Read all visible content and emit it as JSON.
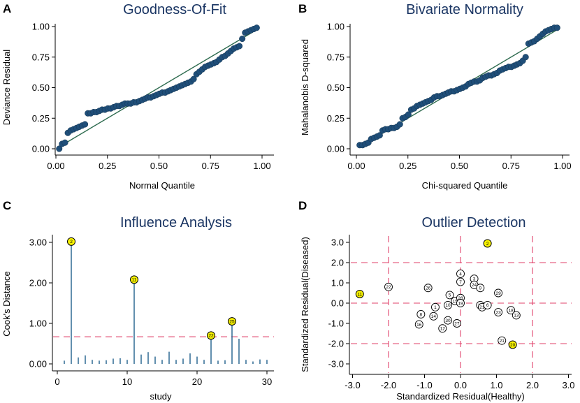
{
  "figure_labels": [
    "A",
    "B",
    "C",
    "D"
  ],
  "colors": {
    "title": "#1a3563",
    "dots": "#1f4e79",
    "fit_line": "#2e6b4f",
    "reference": "#e0406a",
    "highlight": "#f7f202",
    "stems": "#1f5f8b"
  },
  "chart_data": [
    {
      "panel": "A",
      "type": "scatter",
      "title": "Goodness-Of-Fit",
      "xlabel": "Normal Quantile",
      "ylabel": "Deviance Residual",
      "xlim": [
        0,
        1
      ],
      "ylim": [
        0,
        1
      ],
      "xticks": [
        "0.00",
        "0.25",
        "0.50",
        "0.75",
        "1.00"
      ],
      "yticks": [
        "0.00",
        "0.25",
        "0.50",
        "0.75",
        "1.00"
      ],
      "fit_line": [
        [
          0.02,
          0.02
        ],
        [
          0.98,
          0.98
        ]
      ],
      "x": [
        0.016,
        0.03,
        0.044,
        0.058,
        0.072,
        0.086,
        0.1,
        0.113,
        0.127,
        0.141,
        0.155,
        0.169,
        0.183,
        0.197,
        0.211,
        0.224,
        0.238,
        0.252,
        0.266,
        0.28,
        0.294,
        0.308,
        0.322,
        0.335,
        0.349,
        0.363,
        0.377,
        0.391,
        0.405,
        0.419,
        0.433,
        0.446,
        0.46,
        0.474,
        0.488,
        0.502,
        0.516,
        0.53,
        0.544,
        0.557,
        0.571,
        0.585,
        0.599,
        0.613,
        0.627,
        0.641,
        0.655,
        0.668,
        0.682,
        0.696,
        0.71,
        0.724,
        0.738,
        0.752,
        0.766,
        0.779,
        0.793,
        0.807,
        0.821,
        0.835,
        0.849,
        0.863,
        0.877,
        0.89,
        0.904,
        0.918,
        0.932,
        0.946,
        0.96,
        0.974
      ],
      "y": [
        0.0,
        0.04,
        0.05,
        0.13,
        0.15,
        0.16,
        0.17,
        0.18,
        0.19,
        0.2,
        0.29,
        0.29,
        0.3,
        0.3,
        0.31,
        0.32,
        0.32,
        0.33,
        0.33,
        0.34,
        0.35,
        0.35,
        0.36,
        0.37,
        0.37,
        0.37,
        0.38,
        0.38,
        0.39,
        0.4,
        0.41,
        0.42,
        0.42,
        0.43,
        0.44,
        0.45,
        0.46,
        0.46,
        0.47,
        0.48,
        0.49,
        0.5,
        0.51,
        0.52,
        0.53,
        0.54,
        0.55,
        0.57,
        0.61,
        0.63,
        0.65,
        0.67,
        0.68,
        0.69,
        0.7,
        0.71,
        0.73,
        0.75,
        0.76,
        0.78,
        0.8,
        0.82,
        0.83,
        0.84,
        0.9,
        0.95,
        0.96,
        0.97,
        0.98,
        0.99
      ]
    },
    {
      "panel": "B",
      "type": "scatter",
      "title": "Bivariate Normality",
      "xlabel": "Chi-squared Quantile",
      "ylabel": "Mahalanobis D-squared",
      "xlim": [
        0,
        1
      ],
      "ylim": [
        0,
        1
      ],
      "xticks": [
        "0.00",
        "0.25",
        "0.50",
        "0.75",
        "1.00"
      ],
      "yticks": [
        "0.00",
        "0.25",
        "0.50",
        "0.75",
        "1.00"
      ],
      "fit_line": [
        [
          0.02,
          0.02
        ],
        [
          0.98,
          0.98
        ]
      ],
      "x": [
        0.016,
        0.03,
        0.044,
        0.058,
        0.072,
        0.086,
        0.1,
        0.113,
        0.127,
        0.141,
        0.155,
        0.169,
        0.183,
        0.197,
        0.211,
        0.224,
        0.238,
        0.252,
        0.266,
        0.28,
        0.294,
        0.308,
        0.322,
        0.335,
        0.349,
        0.363,
        0.377,
        0.391,
        0.405,
        0.419,
        0.433,
        0.446,
        0.46,
        0.474,
        0.488,
        0.502,
        0.516,
        0.53,
        0.544,
        0.557,
        0.571,
        0.585,
        0.599,
        0.613,
        0.627,
        0.641,
        0.655,
        0.668,
        0.682,
        0.696,
        0.71,
        0.724,
        0.738,
        0.752,
        0.766,
        0.779,
        0.793,
        0.807,
        0.821,
        0.835,
        0.849,
        0.863,
        0.877,
        0.89,
        0.904,
        0.918,
        0.932,
        0.946,
        0.96,
        0.974
      ],
      "y": [
        0.03,
        0.03,
        0.04,
        0.05,
        0.08,
        0.09,
        0.1,
        0.11,
        0.15,
        0.16,
        0.16,
        0.17,
        0.17,
        0.18,
        0.2,
        0.25,
        0.26,
        0.28,
        0.32,
        0.33,
        0.35,
        0.36,
        0.37,
        0.38,
        0.39,
        0.4,
        0.42,
        0.43,
        0.43,
        0.44,
        0.45,
        0.46,
        0.47,
        0.47,
        0.48,
        0.49,
        0.5,
        0.51,
        0.53,
        0.54,
        0.55,
        0.55,
        0.56,
        0.58,
        0.59,
        0.6,
        0.6,
        0.61,
        0.62,
        0.64,
        0.65,
        0.66,
        0.67,
        0.67,
        0.68,
        0.69,
        0.7,
        0.72,
        0.75,
        0.86,
        0.87,
        0.88,
        0.9,
        0.92,
        0.94,
        0.96,
        0.97,
        0.98,
        0.99,
        0.99
      ]
    },
    {
      "panel": "C",
      "type": "stem",
      "title": "Influence Analysis",
      "xlabel": "study",
      "ylabel": "Cook's Distance",
      "xlim": [
        0,
        30
      ],
      "ylim": [
        0,
        3.2
      ],
      "xticks": [
        "0",
        "10",
        "20",
        "30"
      ],
      "yticks": [
        "0.00",
        "1.00",
        "2.00",
        "3.00"
      ],
      "threshold": 0.67,
      "x": [
        1,
        2,
        3,
        4,
        5,
        6,
        7,
        8,
        9,
        10,
        11,
        12,
        13,
        14,
        15,
        16,
        17,
        18,
        19,
        20,
        21,
        22,
        23,
        24,
        25,
        26,
        27,
        28,
        29,
        30
      ],
      "values": [
        0.08,
        3.02,
        0.16,
        0.21,
        0.1,
        0.08,
        0.09,
        0.13,
        0.14,
        0.1,
        2.08,
        0.23,
        0.29,
        0.18,
        0.1,
        0.3,
        0.1,
        0.13,
        0.26,
        0.18,
        0.1,
        0.7,
        0.08,
        0.09,
        1.05,
        0.62,
        0.1,
        0.06,
        0.11,
        0.1
      ],
      "highlighted": [
        {
          "x": 2,
          "label": "2"
        },
        {
          "x": 11,
          "label": "11"
        },
        {
          "x": 22,
          "label": "22"
        },
        {
          "x": 25,
          "label": "25"
        }
      ]
    },
    {
      "panel": "D",
      "type": "scatter",
      "title": "Outlier Detection",
      "xlabel": "Standardized Residual(Healthy)",
      "ylabel": "Standardized Residual(Diseased)",
      "xlim": [
        -3,
        3
      ],
      "ylim": [
        -3,
        3
      ],
      "xticks": [
        "-3.0",
        "-2.0",
        "-1.0",
        "0.0",
        "1.0",
        "2.0",
        "3.0"
      ],
      "yticks": [
        "-3.0",
        "-2.0",
        "-1.0",
        "0.0",
        "1.0",
        "2.0",
        "3.0"
      ],
      "ref_x": [
        -2,
        0,
        2
      ],
      "ref_y": [
        -2,
        0,
        2
      ],
      "points": [
        {
          "label": "2",
          "x": 0.75,
          "y": 2.95,
          "highlight": true
        },
        {
          "label": "11",
          "x": -2.8,
          "y": 0.45,
          "highlight": true
        },
        {
          "label": "20",
          "x": 1.45,
          "y": -2.05,
          "highlight": true
        },
        {
          "label": "22",
          "x": -2.0,
          "y": 0.8,
          "highlight": false
        },
        {
          "label": "4",
          "x": 0.0,
          "y": 1.45,
          "highlight": false
        },
        {
          "label": "7",
          "x": 0.0,
          "y": 1.05,
          "highlight": false
        },
        {
          "label": "3",
          "x": 0.38,
          "y": 1.2,
          "highlight": false
        },
        {
          "label": "24",
          "x": 0.38,
          "y": 0.9,
          "highlight": false
        },
        {
          "label": "9",
          "x": 0.55,
          "y": 0.75,
          "highlight": false
        },
        {
          "label": "29",
          "x": 1.05,
          "y": 0.5,
          "highlight": false
        },
        {
          "label": "26",
          "x": -0.9,
          "y": 0.75,
          "highlight": false
        },
        {
          "label": "5",
          "x": -0.3,
          "y": 0.4,
          "highlight": false
        },
        {
          "label": "15",
          "x": -0.15,
          "y": 0.1,
          "highlight": false
        },
        {
          "label": "28",
          "x": 0.0,
          "y": 0.25,
          "highlight": false
        },
        {
          "label": "19",
          "x": 0.0,
          "y": 0.0,
          "highlight": false
        },
        {
          "label": "10",
          "x": -0.35,
          "y": -0.1,
          "highlight": false
        },
        {
          "label": "1",
          "x": -0.7,
          "y": -0.2,
          "highlight": false
        },
        {
          "label": "17",
          "x": 0.55,
          "y": -0.1,
          "highlight": false
        },
        {
          "label": "21",
          "x": 0.6,
          "y": -0.2,
          "highlight": false
        },
        {
          "label": "6",
          "x": 0.75,
          "y": -0.1,
          "highlight": false
        },
        {
          "label": "18",
          "x": 1.4,
          "y": -0.35,
          "highlight": false
        },
        {
          "label": "13",
          "x": 1.55,
          "y": -0.6,
          "highlight": false
        },
        {
          "label": "8",
          "x": -1.1,
          "y": -0.55,
          "highlight": false
        },
        {
          "label": "14",
          "x": -0.75,
          "y": -0.65,
          "highlight": false
        },
        {
          "label": "16",
          "x": -1.15,
          "y": -1.05,
          "highlight": false
        },
        {
          "label": "30",
          "x": -0.35,
          "y": -0.85,
          "highlight": false
        },
        {
          "label": "27",
          "x": -0.1,
          "y": -1.0,
          "highlight": false
        },
        {
          "label": "12",
          "x": -0.5,
          "y": -1.25,
          "highlight": false
        },
        {
          "label": "23",
          "x": 1.05,
          "y": -0.45,
          "highlight": false
        },
        {
          "label": "21",
          "x": 1.15,
          "y": -1.85,
          "highlight": false
        }
      ]
    }
  ]
}
